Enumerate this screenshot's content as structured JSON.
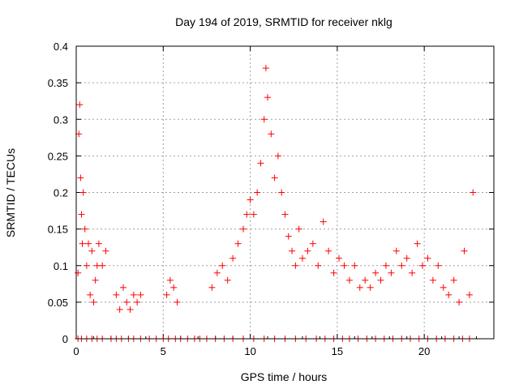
{
  "chart_data": {
    "type": "scatter",
    "title": "Day 194 of 2019, SRMTID for receiver nklg",
    "xlabel": "GPS time / hours",
    "ylabel": "SRMTID / TECUs",
    "xlim": [
      0,
      24
    ],
    "ylim": [
      0,
      0.4
    ],
    "xticks": [
      0,
      5,
      10,
      15,
      20
    ],
    "xtick_labels": [
      "0",
      "5",
      "10",
      "15",
      "20"
    ],
    "yticks": [
      0,
      0.05,
      0.1,
      0.15,
      0.2,
      0.25,
      0.3,
      0.35,
      0.4
    ],
    "ytick_labels": [
      "0",
      "0.05",
      "0.1",
      "0.15",
      "0.2",
      "0.25",
      "0.3",
      "0.35",
      "0.4"
    ],
    "grid": true,
    "marker": "plus",
    "color": "#ff0000",
    "series": [
      {
        "name": "SRMTID",
        "x": [
          0.1,
          0.15,
          0.2,
          0.25,
          0.3,
          0.35,
          0.4,
          0.5,
          0.6,
          0.7,
          0.8,
          0.9,
          1.0,
          1.1,
          1.2,
          1.3,
          1.5,
          1.7,
          2.3,
          2.5,
          2.7,
          2.9,
          3.1,
          3.3,
          3.5,
          3.7,
          5.2,
          5.4,
          5.6,
          5.8,
          7.8,
          8.1,
          8.4,
          8.7,
          9.0,
          9.3,
          9.6,
          9.8,
          10.0,
          10.2,
          10.4,
          10.6,
          10.8,
          10.9,
          11.0,
          11.2,
          11.4,
          11.6,
          11.8,
          12.0,
          12.2,
          12.4,
          12.6,
          12.8,
          13.0,
          13.3,
          13.6,
          13.9,
          14.2,
          14.5,
          14.8,
          15.1,
          15.4,
          15.7,
          16.0,
          16.3,
          16.6,
          16.9,
          17.2,
          17.5,
          17.8,
          18.1,
          18.4,
          18.7,
          19.0,
          19.3,
          19.6,
          19.9,
          20.2,
          20.5,
          20.8,
          21.1,
          21.4,
          21.7,
          22.0,
          22.3,
          22.6,
          22.8
        ],
        "y": [
          0.09,
          0.28,
          0.32,
          0.22,
          0.17,
          0.13,
          0.2,
          0.15,
          0.1,
          0.13,
          0.06,
          0.12,
          0.05,
          0.08,
          0.1,
          0.13,
          0.1,
          0.12,
          0.06,
          0.04,
          0.07,
          0.05,
          0.04,
          0.06,
          0.05,
          0.06,
          0.06,
          0.08,
          0.07,
          0.05,
          0.07,
          0.09,
          0.1,
          0.08,
          0.11,
          0.13,
          0.15,
          0.17,
          0.19,
          0.17,
          0.2,
          0.24,
          0.3,
          0.37,
          0.33,
          0.28,
          0.22,
          0.25,
          0.2,
          0.17,
          0.14,
          0.12,
          0.1,
          0.15,
          0.11,
          0.12,
          0.13,
          0.1,
          0.16,
          0.12,
          0.09,
          0.11,
          0.1,
          0.08,
          0.1,
          0.07,
          0.08,
          0.07,
          0.09,
          0.08,
          0.1,
          0.09,
          0.12,
          0.1,
          0.11,
          0.09,
          0.13,
          0.1,
          0.11,
          0.08,
          0.1,
          0.07,
          0.06,
          0.08,
          0.05,
          0.12,
          0.06,
          0.2
        ],
        "zero_x": [
          0.1,
          0.3,
          0.6,
          0.9,
          1.2,
          1.5,
          2.0,
          2.3,
          2.6,
          3.0,
          3.3,
          3.7,
          4.2,
          4.6,
          5.0,
          5.3,
          5.7,
          6.0,
          6.4,
          6.8,
          7.1,
          7.5,
          8.0,
          8.5,
          9.0,
          9.6,
          10.2,
          10.8,
          11.4,
          12.0,
          12.6,
          13.2,
          13.8,
          14.3,
          14.8,
          15.3,
          15.7,
          16.2,
          16.7,
          17.2,
          17.7,
          18.2,
          18.7,
          19.2,
          19.7,
          20.2,
          20.7,
          21.2,
          21.7,
          22.2,
          22.6
        ]
      }
    ]
  }
}
